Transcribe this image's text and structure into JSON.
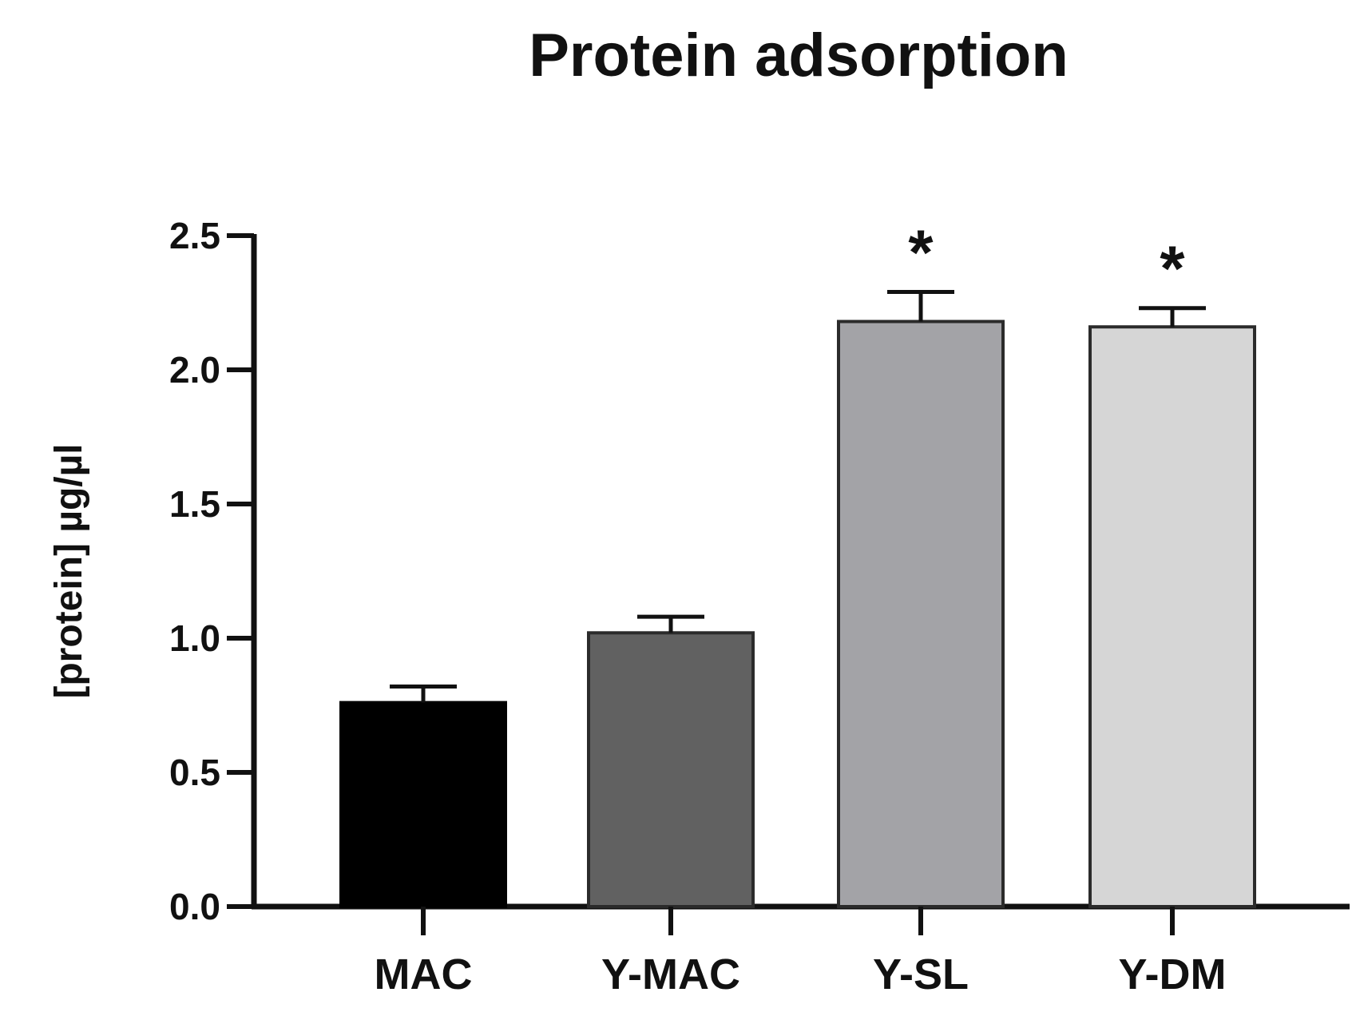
{
  "chart_data": {
    "type": "bar",
    "title": "Protein adsorption",
    "xlabel": "",
    "ylabel": "[protein] µg/µl",
    "ylim": [
      0,
      2.5
    ],
    "yticks": [
      "0.0",
      "0.5",
      "1.0",
      "1.5",
      "2.0",
      "2.5"
    ],
    "categories": [
      "MAC",
      "Y-MAC",
      "Y-SL",
      "Y-DM"
    ],
    "values": [
      0.76,
      1.02,
      2.18,
      2.16
    ],
    "error_plus": [
      0.06,
      0.06,
      0.11,
      0.07
    ],
    "annotations": [
      "",
      "",
      "*",
      "*"
    ],
    "bar_colors": [
      "#000000",
      "#616161",
      "#a3a3a7",
      "#d6d6d6"
    ],
    "grid": false,
    "legend": "none"
  }
}
